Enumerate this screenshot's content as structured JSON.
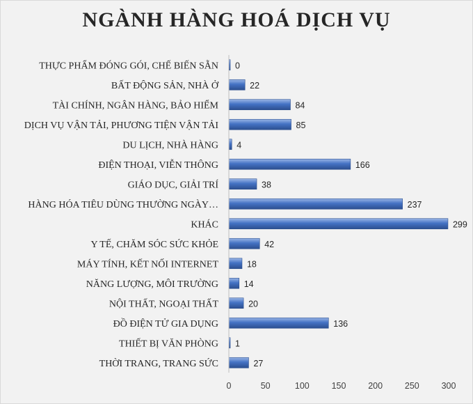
{
  "chart_data": {
    "type": "bar",
    "orientation": "horizontal",
    "title": "NGÀNH HÀNG HOÁ DỊCH VỤ",
    "categories": [
      "THỰC PHẨM ĐÓNG GÓI, CHẾ BIẾN SẴN",
      "BẤT ĐỘNG SẢN, NHÀ Ở",
      "TÀI CHÍNH, NGÂN HÀNG, BẢO HIỂM",
      "DỊCH VỤ VẬN TẢI, PHƯƠNG TIỆN VẬN TẢI",
      "DU LỊCH, NHÀ HÀNG",
      "ĐIỆN THOẠI, VIỄN THÔNG",
      "GIÁO DỤC, GIẢI TRÍ",
      "HÀNG HÓA TIÊU DÙNG THƯỜNG NGÀY…",
      "KHÁC",
      "Y TẾ, CHĂM SÓC SỨC KHỎE",
      "MÁY TÍNH, KẾT NỐI INTERNET",
      "NĂNG LƯỢNG, MÔI TRƯỜNG",
      "NỘI THẤT, NGOẠI THẤT",
      "ĐỒ ĐIỆN TỬ GIA DỤNG",
      "THIẾT BỊ VĂN PHÒNG",
      "THỜI TRANG, TRANG SỨC"
    ],
    "values": [
      0,
      22,
      84,
      85,
      4,
      166,
      38,
      237,
      299,
      42,
      18,
      14,
      20,
      136,
      1,
      27
    ],
    "xlim": [
      0,
      300
    ],
    "xticks": [
      0,
      50,
      100,
      150,
      200,
      250,
      300
    ],
    "grid": false,
    "legend": "none",
    "colors": {
      "bar": "#4472c4",
      "bar_light": "#9bb6e6",
      "bar_dark": "#2c4f8f",
      "text": "#262626",
      "background": "#f2f2f2"
    }
  }
}
